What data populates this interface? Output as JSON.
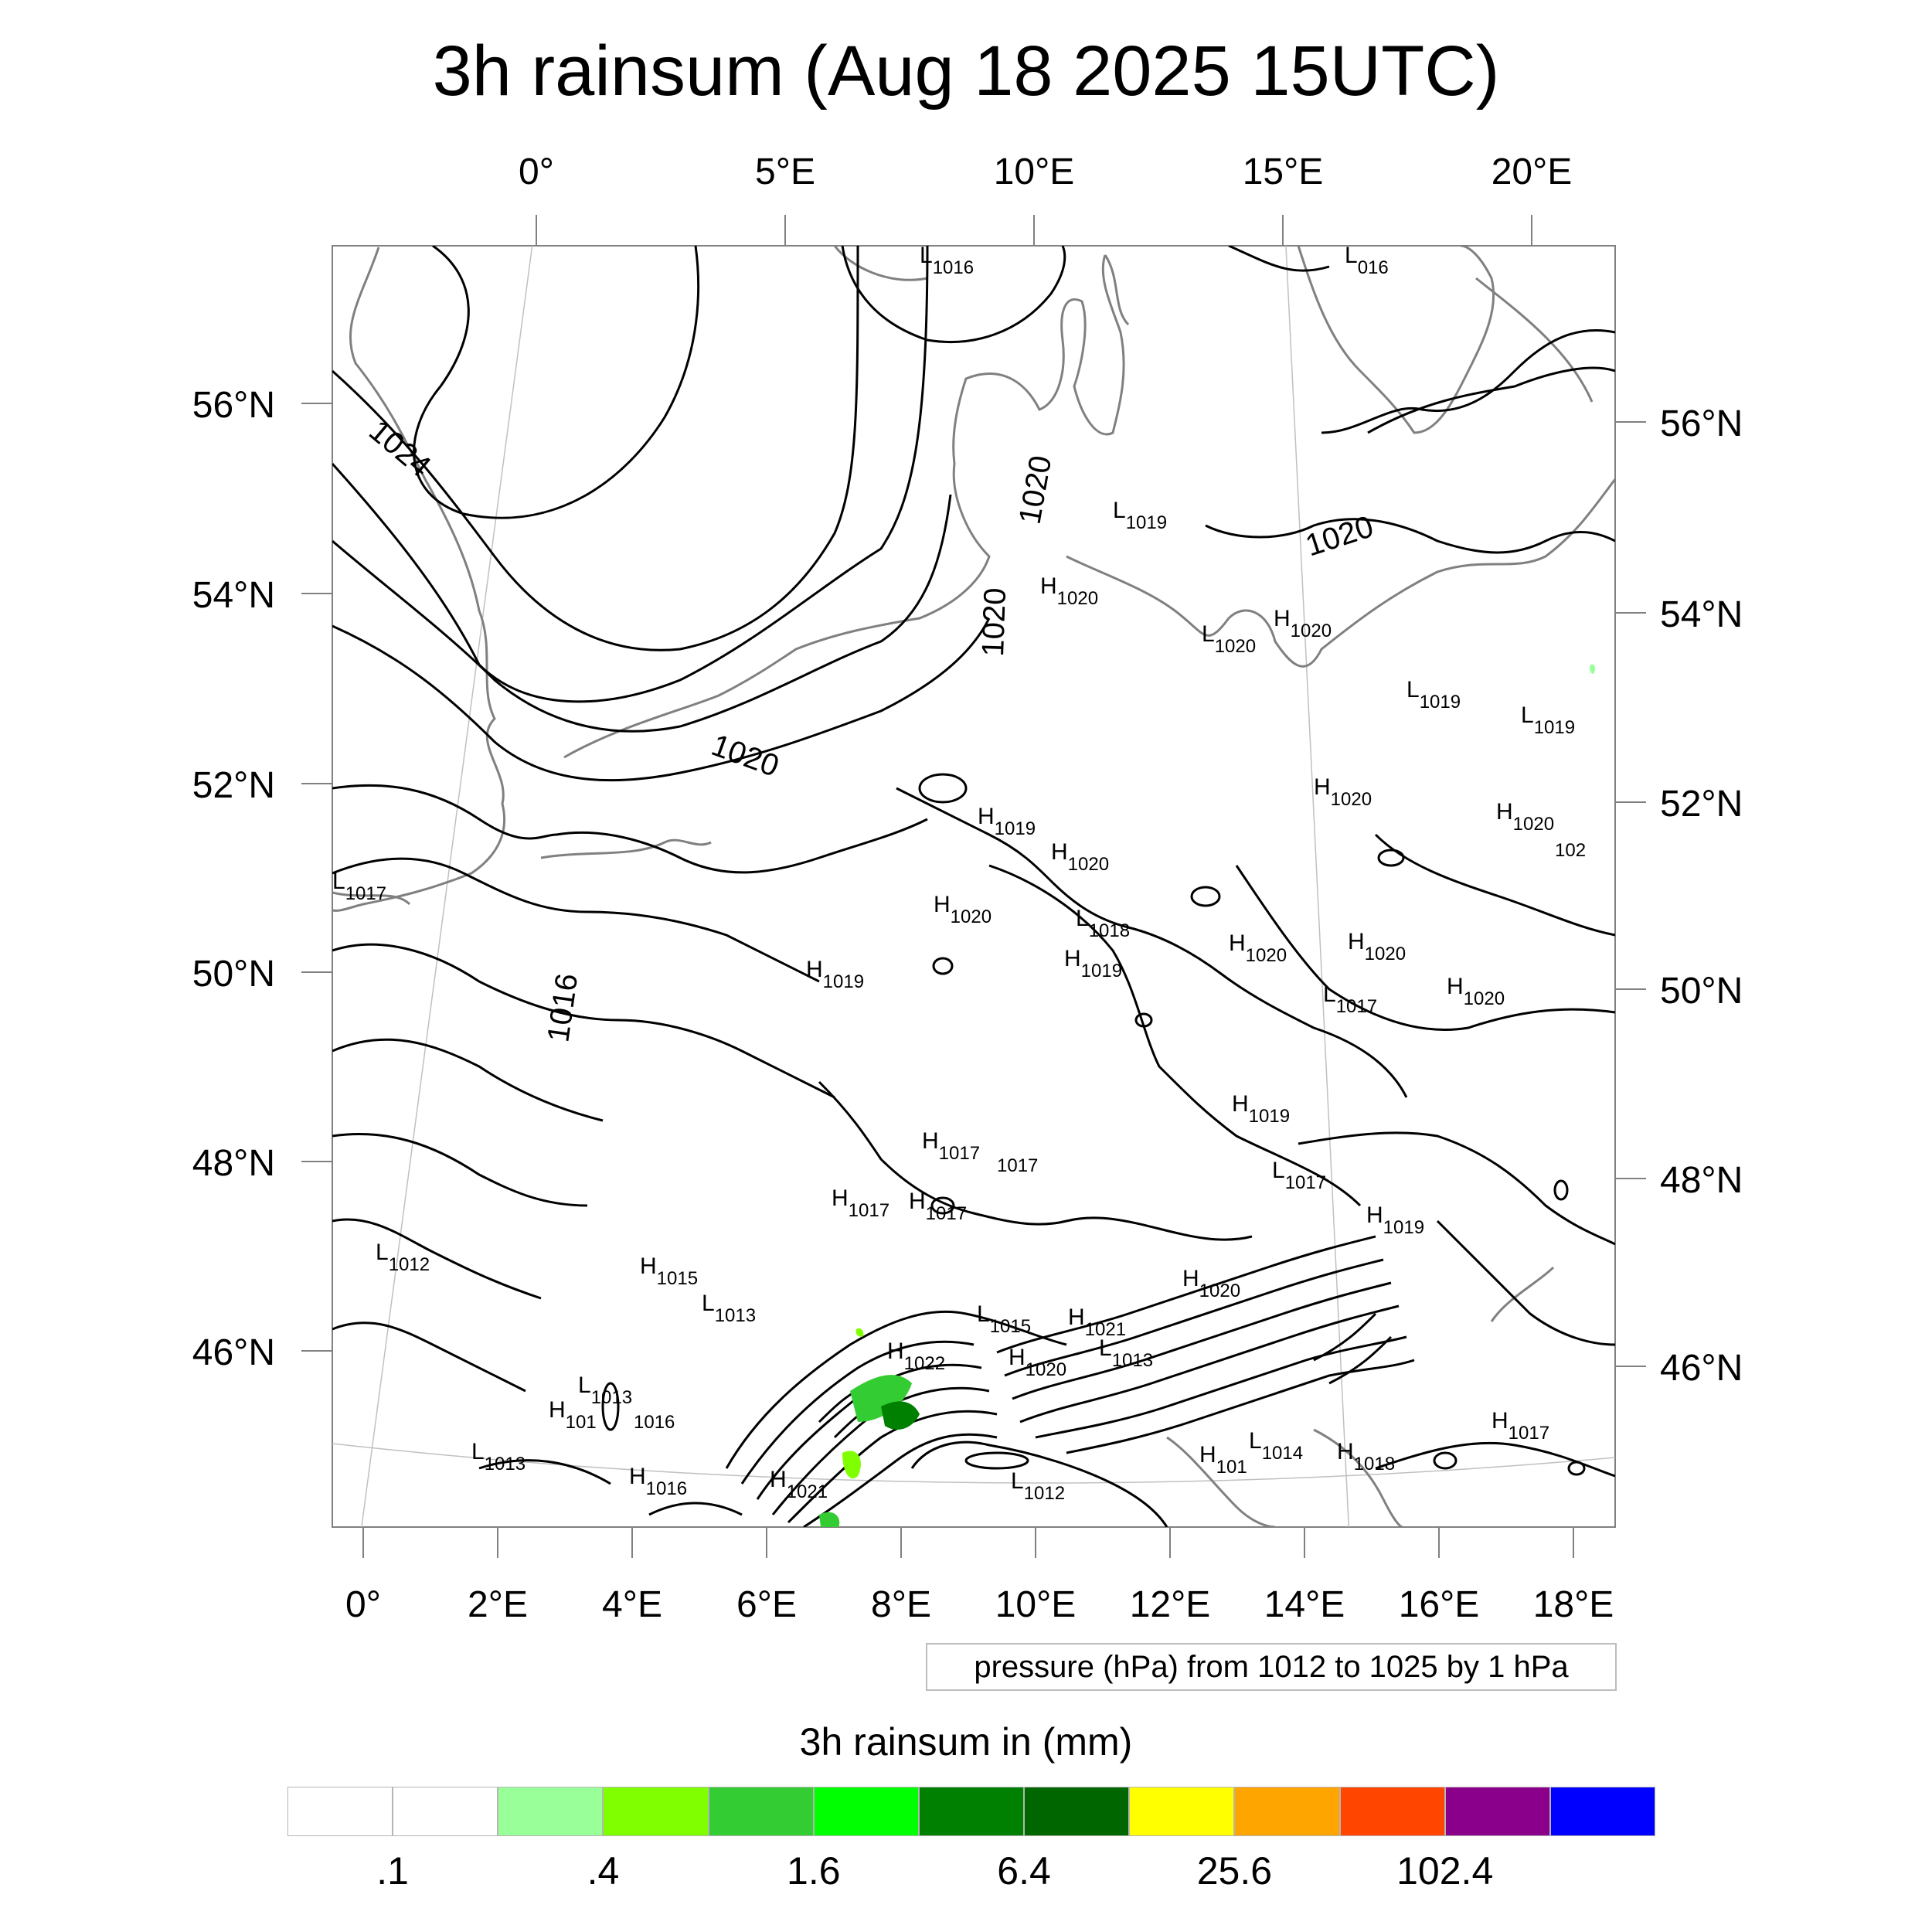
{
  "title": "3h rainsum (Aug 18 2025 15UTC)",
  "top_lon_labels": [
    "0°",
    "5°E",
    "10°E",
    "15°E",
    "20°E"
  ],
  "bottom_lon_labels": [
    "0°",
    "2°E",
    "4°E",
    "6°E",
    "8°E",
    "10°E",
    "12°E",
    "14°E",
    "16°E",
    "18°E"
  ],
  "left_lat_labels": [
    "56°N",
    "54°N",
    "52°N",
    "50°N",
    "48°N",
    "46°N"
  ],
  "right_lat_labels": [
    "56°N",
    "54°N",
    "52°N",
    "50°N",
    "48°N",
    "46°N"
  ],
  "isobar_labels": [
    "1024",
    "1020",
    "1020",
    "1020",
    "1020",
    "1016"
  ],
  "pressure_centers": [
    {
      "type": "L",
      "value": "1016"
    },
    {
      "type": "L",
      "value": "016"
    },
    {
      "type": "L",
      "value": "1019"
    },
    {
      "type": "H",
      "value": "1020"
    },
    {
      "type": "L",
      "value": "1020"
    },
    {
      "type": "H",
      "value": "1020"
    },
    {
      "type": "L",
      "value": "1019"
    },
    {
      "type": "L",
      "value": "1019"
    },
    {
      "type": "H",
      "value": "1020"
    },
    {
      "type": "H",
      "value": "1020"
    },
    {
      "type": "",
      "value": "102"
    },
    {
      "type": "H",
      "value": "1019"
    },
    {
      "type": "H",
      "value": "1020"
    },
    {
      "type": "L",
      "value": "1017"
    },
    {
      "type": "H",
      "value": "1020"
    },
    {
      "type": "L",
      "value": "1018"
    },
    {
      "type": "H",
      "value": "1019"
    },
    {
      "type": "H",
      "value": "1020"
    },
    {
      "type": "H",
      "value": "1020"
    },
    {
      "type": "H",
      "value": "1019"
    },
    {
      "type": "L",
      "value": "1017"
    },
    {
      "type": "H",
      "value": "1020"
    },
    {
      "type": "H",
      "value": "1019"
    },
    {
      "type": "H",
      "value": "1017"
    },
    {
      "type": "",
      "value": "1017"
    },
    {
      "type": "L",
      "value": "1017"
    },
    {
      "type": "H",
      "value": "1017"
    },
    {
      "type": "H",
      "value": "1017"
    },
    {
      "type": "H",
      "value": "1019"
    },
    {
      "type": "L",
      "value": "1012"
    },
    {
      "type": "H",
      "value": "1015"
    },
    {
      "type": "L",
      "value": "1013"
    },
    {
      "type": "L",
      "value": "1015"
    },
    {
      "type": "H",
      "value": "1021"
    },
    {
      "type": "H",
      "value": "1020"
    },
    {
      "type": "H",
      "value": "1022"
    },
    {
      "type": "H",
      "value": "1020"
    },
    {
      "type": "L",
      "value": "1013"
    },
    {
      "type": "L",
      "value": "1013"
    },
    {
      "type": "H",
      "value": "101"
    },
    {
      "type": "",
      "value": "1016"
    },
    {
      "type": "L",
      "value": "1013"
    },
    {
      "type": "H",
      "value": "1016"
    },
    {
      "type": "H",
      "value": "1021"
    },
    {
      "type": "L",
      "value": "1012"
    },
    {
      "type": "H",
      "value": "1017"
    },
    {
      "type": "H",
      "value": "101"
    },
    {
      "type": "L",
      "value": "1014"
    },
    {
      "type": "H",
      "value": "1018"
    }
  ],
  "info_box": "pressure (hPa) from 1012 to 1025 by 1 hPa",
  "colorbar": {
    "title": "3h rainsum in (mm)",
    "colors": [
      "#ffffff",
      "#ffffff",
      "#99ff99",
      "#80ff00",
      "#33cc33",
      "#00ff00",
      "#008000",
      "#006600",
      "#ffff00",
      "#ffa500",
      "#ff4500",
      "#8b008b",
      "#0000ff"
    ],
    "labels": [
      ".1",
      ".4",
      "1.6",
      "6.4",
      "25.6",
      "102.4"
    ]
  },
  "colors": {
    "isobar": "#000000",
    "coastline": "#808080",
    "gridline": "#c0c0c0",
    "frame": "#808080"
  }
}
